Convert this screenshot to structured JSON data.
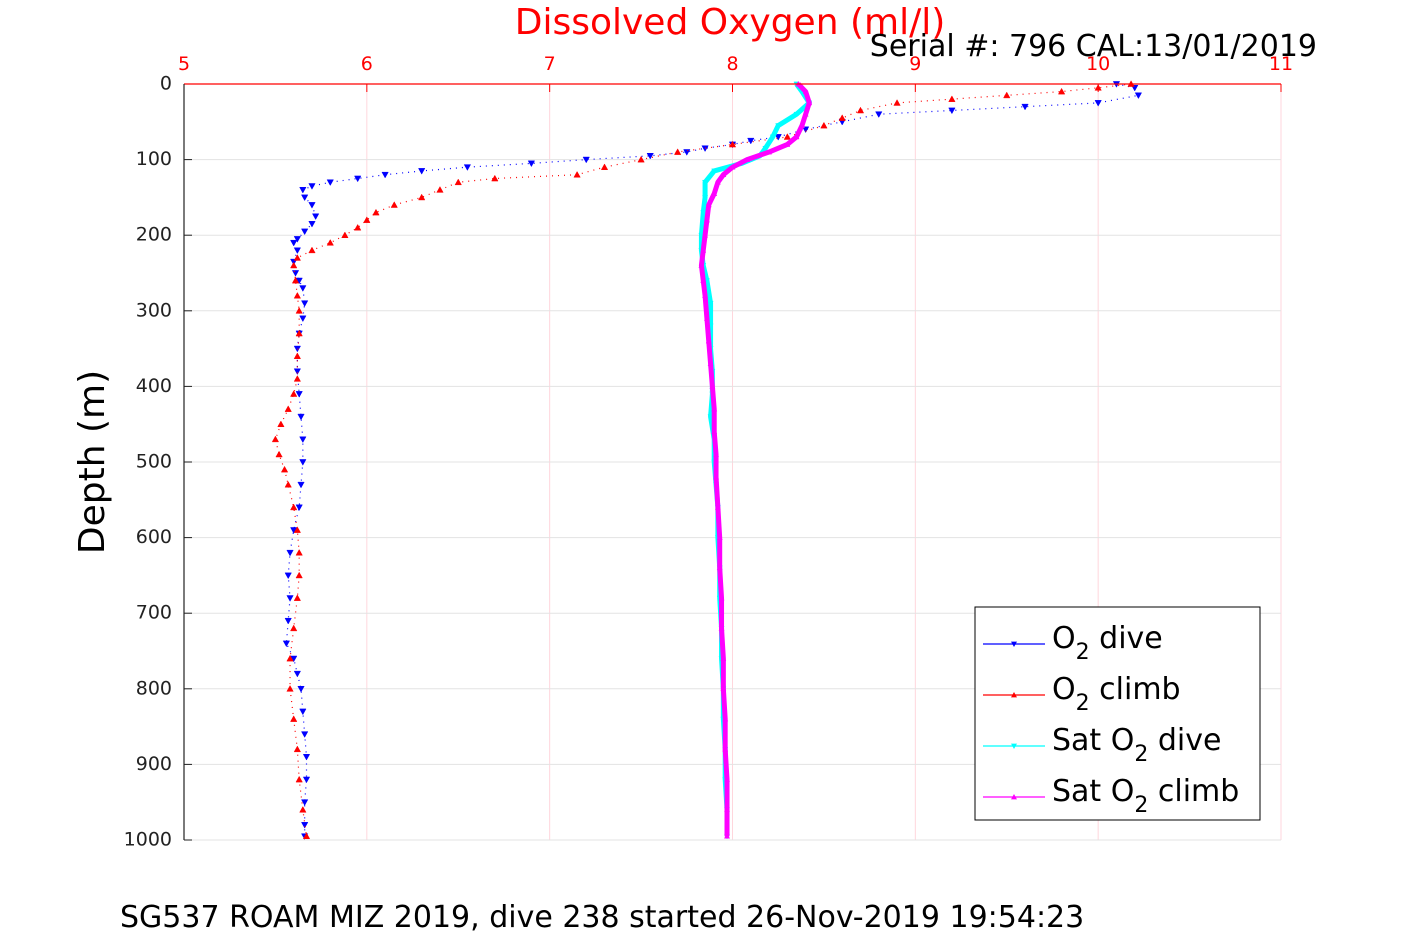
{
  "chart_data": {
    "type": "line",
    "title": "Dissolved Oxygen (ml/l)",
    "serial": "Serial #: 796  CAL:13/01/2019",
    "ylabel": "Depth (m)",
    "caption": "SG537 ROAM MIZ 2019, dive 238 started 26-Nov-2019 19:54:23",
    "xlim": [
      5,
      11
    ],
    "ylim": [
      0,
      1000
    ],
    "y_reversed": true,
    "x_axis_position": "top",
    "xticks": [
      "5",
      "6",
      "7",
      "8",
      "9",
      "10",
      "11"
    ],
    "yticks": [
      "0",
      "100",
      "200",
      "300",
      "400",
      "500",
      "600",
      "700",
      "800",
      "900",
      "1000"
    ],
    "grid": true,
    "legend_position": "bottom-right",
    "series": [
      {
        "name": "O2 dive",
        "legend": {
          "base": "O",
          "sub": "2",
          "rest": " dive"
        },
        "color": "#0000ff",
        "marker": "triangle-down",
        "points": [
          [
            10.1,
            0
          ],
          [
            10.2,
            5
          ],
          [
            10.22,
            15
          ],
          [
            10.0,
            25
          ],
          [
            9.6,
            30
          ],
          [
            9.2,
            35
          ],
          [
            8.8,
            40
          ],
          [
            8.6,
            50
          ],
          [
            8.4,
            60
          ],
          [
            8.25,
            70
          ],
          [
            8.1,
            75
          ],
          [
            8.0,
            80
          ],
          [
            7.85,
            85
          ],
          [
            7.75,
            90
          ],
          [
            7.55,
            95
          ],
          [
            7.2,
            100
          ],
          [
            6.9,
            105
          ],
          [
            6.55,
            110
          ],
          [
            6.3,
            115
          ],
          [
            6.1,
            120
          ],
          [
            5.95,
            125
          ],
          [
            5.8,
            130
          ],
          [
            5.7,
            135
          ],
          [
            5.65,
            140
          ],
          [
            5.66,
            150
          ],
          [
            5.7,
            160
          ],
          [
            5.72,
            175
          ],
          [
            5.7,
            185
          ],
          [
            5.66,
            195
          ],
          [
            5.62,
            205
          ],
          [
            5.6,
            210
          ],
          [
            5.62,
            220
          ],
          [
            5.6,
            235
          ],
          [
            5.61,
            250
          ],
          [
            5.63,
            260
          ],
          [
            5.65,
            270
          ],
          [
            5.66,
            290
          ],
          [
            5.65,
            310
          ],
          [
            5.63,
            330
          ],
          [
            5.62,
            350
          ],
          [
            5.62,
            380
          ],
          [
            5.63,
            410
          ],
          [
            5.64,
            440
          ],
          [
            5.65,
            470
          ],
          [
            5.65,
            500
          ],
          [
            5.64,
            530
          ],
          [
            5.63,
            560
          ],
          [
            5.6,
            590
          ],
          [
            5.58,
            620
          ],
          [
            5.57,
            650
          ],
          [
            5.58,
            680
          ],
          [
            5.57,
            710
          ],
          [
            5.56,
            740
          ],
          [
            5.6,
            760
          ],
          [
            5.62,
            780
          ],
          [
            5.64,
            800
          ],
          [
            5.65,
            830
          ],
          [
            5.66,
            860
          ],
          [
            5.67,
            890
          ],
          [
            5.67,
            920
          ],
          [
            5.66,
            950
          ],
          [
            5.66,
            980
          ],
          [
            5.66,
            995
          ]
        ]
      },
      {
        "name": "O2 climb",
        "legend": {
          "base": "O",
          "sub": "2",
          "rest": " climb"
        },
        "color": "#ff0000",
        "marker": "triangle-up",
        "points": [
          [
            10.18,
            0
          ],
          [
            10.0,
            5
          ],
          [
            9.8,
            10
          ],
          [
            9.5,
            15
          ],
          [
            9.2,
            20
          ],
          [
            8.9,
            25
          ],
          [
            8.7,
            35
          ],
          [
            8.6,
            45
          ],
          [
            8.5,
            55
          ],
          [
            8.3,
            70
          ],
          [
            8.0,
            80
          ],
          [
            7.7,
            90
          ],
          [
            7.5,
            100
          ],
          [
            7.3,
            110
          ],
          [
            7.15,
            120
          ],
          [
            6.7,
            125
          ],
          [
            6.5,
            130
          ],
          [
            6.4,
            140
          ],
          [
            6.3,
            150
          ],
          [
            6.15,
            160
          ],
          [
            6.05,
            170
          ],
          [
            6.0,
            180
          ],
          [
            5.95,
            190
          ],
          [
            5.88,
            200
          ],
          [
            5.8,
            210
          ],
          [
            5.7,
            220
          ],
          [
            5.62,
            230
          ],
          [
            5.6,
            240
          ],
          [
            5.61,
            260
          ],
          [
            5.62,
            280
          ],
          [
            5.63,
            300
          ],
          [
            5.63,
            330
          ],
          [
            5.62,
            360
          ],
          [
            5.62,
            390
          ],
          [
            5.6,
            410
          ],
          [
            5.57,
            430
          ],
          [
            5.53,
            450
          ],
          [
            5.5,
            470
          ],
          [
            5.52,
            490
          ],
          [
            5.55,
            510
          ],
          [
            5.57,
            530
          ],
          [
            5.6,
            560
          ],
          [
            5.62,
            590
          ],
          [
            5.63,
            620
          ],
          [
            5.63,
            650
          ],
          [
            5.62,
            680
          ],
          [
            5.6,
            720
          ],
          [
            5.58,
            760
          ],
          [
            5.58,
            800
          ],
          [
            5.6,
            840
          ],
          [
            5.62,
            880
          ],
          [
            5.63,
            920
          ],
          [
            5.65,
            960
          ],
          [
            5.67,
            995
          ]
        ]
      },
      {
        "name": "Sat O2 dive",
        "legend": {
          "base": "Sat O",
          "sub": "2",
          "rest": " dive"
        },
        "color": "#00ffff",
        "marker": "triangle-down",
        "points": [
          [
            8.35,
            0
          ],
          [
            8.38,
            10
          ],
          [
            8.42,
            25
          ],
          [
            8.35,
            40
          ],
          [
            8.25,
            55
          ],
          [
            8.22,
            70
          ],
          [
            8.18,
            85
          ],
          [
            8.15,
            95
          ],
          [
            8.05,
            105
          ],
          [
            7.9,
            115
          ],
          [
            7.85,
            130
          ],
          [
            7.85,
            150
          ],
          [
            7.84,
            170
          ],
          [
            7.83,
            200
          ],
          [
            7.83,
            220
          ],
          [
            7.84,
            240
          ],
          [
            7.86,
            260
          ],
          [
            7.88,
            290
          ],
          [
            7.88,
            320
          ],
          [
            7.88,
            350
          ],
          [
            7.89,
            380
          ],
          [
            7.89,
            410
          ],
          [
            7.88,
            440
          ],
          [
            7.9,
            470
          ],
          [
            7.9,
            500
          ],
          [
            7.91,
            530
          ],
          [
            7.92,
            560
          ],
          [
            7.92,
            600
          ],
          [
            7.93,
            640
          ],
          [
            7.93,
            680
          ],
          [
            7.94,
            720
          ],
          [
            7.94,
            760
          ],
          [
            7.95,
            800
          ],
          [
            7.95,
            840
          ],
          [
            7.96,
            880
          ],
          [
            7.96,
            920
          ],
          [
            7.97,
            960
          ],
          [
            7.97,
            995
          ]
        ]
      },
      {
        "name": "Sat O2 climb",
        "legend": {
          "base": "Sat O",
          "sub": "2",
          "rest": " climb"
        },
        "color": "#ff00ff",
        "marker": "triangle-up",
        "points": [
          [
            8.36,
            0
          ],
          [
            8.4,
            10
          ],
          [
            8.42,
            25
          ],
          [
            8.4,
            40
          ],
          [
            8.38,
            55
          ],
          [
            8.35,
            70
          ],
          [
            8.3,
            80
          ],
          [
            8.2,
            90
          ],
          [
            8.08,
            100
          ],
          [
            8.0,
            110
          ],
          [
            7.95,
            120
          ],
          [
            7.92,
            130
          ],
          [
            7.9,
            145
          ],
          [
            7.87,
            160
          ],
          [
            7.86,
            180
          ],
          [
            7.85,
            200
          ],
          [
            7.84,
            220
          ],
          [
            7.83,
            240
          ],
          [
            7.84,
            260
          ],
          [
            7.85,
            280
          ],
          [
            7.86,
            310
          ],
          [
            7.87,
            340
          ],
          [
            7.88,
            370
          ],
          [
            7.89,
            400
          ],
          [
            7.9,
            430
          ],
          [
            7.9,
            460
          ],
          [
            7.91,
            490
          ],
          [
            7.91,
            520
          ],
          [
            7.92,
            560
          ],
          [
            7.93,
            600
          ],
          [
            7.93,
            640
          ],
          [
            7.94,
            680
          ],
          [
            7.94,
            720
          ],
          [
            7.95,
            760
          ],
          [
            7.95,
            800
          ],
          [
            7.96,
            840
          ],
          [
            7.96,
            880
          ],
          [
            7.97,
            920
          ],
          [
            7.97,
            960
          ],
          [
            7.97,
            995
          ]
        ]
      }
    ]
  }
}
